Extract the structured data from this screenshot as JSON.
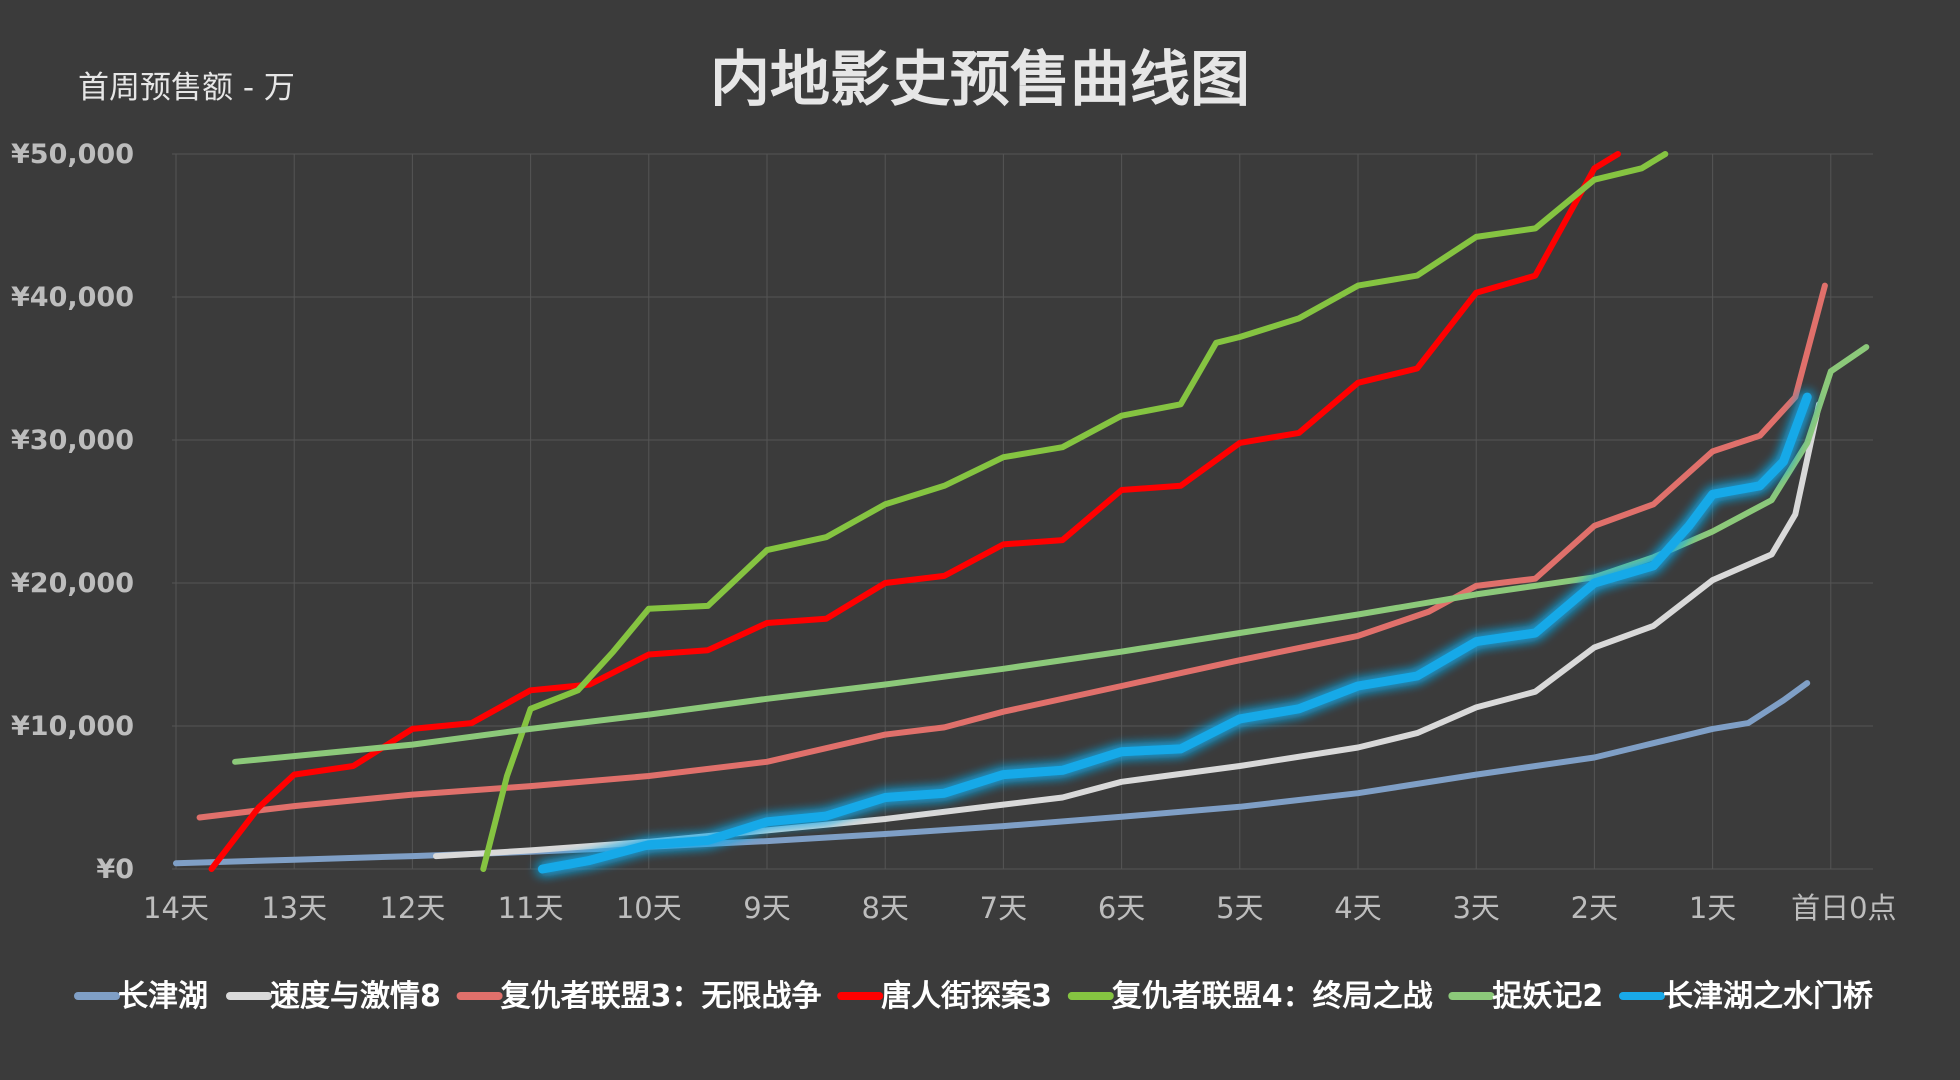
{
  "chart_data": {
    "type": "line",
    "title": "内地影史预售曲线图",
    "ylabel": "首周预售额 - 万",
    "ylim": [
      0,
      50000
    ],
    "yticks": [
      "¥0",
      "¥10,000",
      "¥20,000",
      "¥30,000",
      "¥40,000",
      "¥50,000"
    ],
    "ytick_values": [
      0,
      10000,
      20000,
      30000,
      40000,
      50000
    ],
    "x_categories": [
      "14天",
      "13天",
      "12天",
      "11天",
      "10天",
      "9天",
      "8天",
      "7天",
      "6天",
      "5天",
      "4天",
      "3天",
      "2天",
      "1天",
      "首日0点"
    ],
    "x_note": "x values are in days before release (14 → 0, 首日0点 = 0)",
    "grid": true,
    "legend_position": "bottom",
    "series": [
      {
        "name": "长津湖",
        "color": "#7f9fc6",
        "points": [
          [
            14,
            400
          ],
          [
            13,
            650
          ],
          [
            12,
            900
          ],
          [
            11,
            1200
          ],
          [
            10,
            1550
          ],
          [
            9,
            1950
          ],
          [
            8,
            2450
          ],
          [
            7,
            3000
          ],
          [
            6,
            3650
          ],
          [
            5,
            4350
          ],
          [
            4,
            5300
          ],
          [
            3,
            6600
          ],
          [
            2,
            7800
          ],
          [
            1.6,
            8600
          ],
          [
            1,
            9800
          ],
          [
            0.7,
            10200
          ],
          [
            0.4,
            11800
          ],
          [
            0.2,
            13000
          ]
        ]
      },
      {
        "name": "速度与激情8",
        "color": "#d9d9d9",
        "points": [
          [
            11.8,
            900
          ],
          [
            11,
            1300
          ],
          [
            10,
            1900
          ],
          [
            9,
            2700
          ],
          [
            8,
            3500
          ],
          [
            7,
            4500
          ],
          [
            6.5,
            5000
          ],
          [
            6,
            6100
          ],
          [
            5,
            7200
          ],
          [
            4,
            8500
          ],
          [
            3.5,
            9500
          ],
          [
            3,
            11300
          ],
          [
            2.5,
            12400
          ],
          [
            2,
            15500
          ],
          [
            1.5,
            17000
          ],
          [
            1,
            20200
          ],
          [
            0.5,
            22000
          ],
          [
            0.3,
            24800
          ],
          [
            0.1,
            32500
          ]
        ]
      },
      {
        "name": "复仇者联盟3：无限战争",
        "color": "#e0706b",
        "points": [
          [
            13.8,
            3600
          ],
          [
            13,
            4400
          ],
          [
            12,
            5200
          ],
          [
            11,
            5800
          ],
          [
            10,
            6500
          ],
          [
            9,
            7500
          ],
          [
            8,
            9400
          ],
          [
            7.5,
            9900
          ],
          [
            7,
            11000
          ],
          [
            6,
            12800
          ],
          [
            5,
            14600
          ],
          [
            4,
            16300
          ],
          [
            3.4,
            18000
          ],
          [
            3,
            19800
          ],
          [
            2.5,
            20300
          ],
          [
            2,
            24000
          ],
          [
            1.5,
            25500
          ],
          [
            1,
            29200
          ],
          [
            0.6,
            30300
          ],
          [
            0.3,
            33000
          ],
          [
            0.05,
            40800
          ]
        ]
      },
      {
        "name": "唐人街探案3",
        "color": "#ff0000",
        "points": [
          [
            13.7,
            0
          ],
          [
            13.3,
            4300
          ],
          [
            13,
            6600
          ],
          [
            12.5,
            7200
          ],
          [
            12,
            9800
          ],
          [
            11.5,
            10200
          ],
          [
            11,
            12500
          ],
          [
            10.5,
            12900
          ],
          [
            10,
            15000
          ],
          [
            9.5,
            15300
          ],
          [
            9,
            17200
          ],
          [
            8.5,
            17500
          ],
          [
            8,
            20000
          ],
          [
            7.5,
            20500
          ],
          [
            7,
            22700
          ],
          [
            6.5,
            23000
          ],
          [
            6,
            26500
          ],
          [
            5.5,
            26800
          ],
          [
            5,
            29800
          ],
          [
            4.5,
            30500
          ],
          [
            4,
            34000
          ],
          [
            3.5,
            35000
          ],
          [
            3,
            40300
          ],
          [
            2.5,
            41500
          ],
          [
            2,
            49000
          ],
          [
            1.8,
            50000
          ]
        ]
      },
      {
        "name": "复仇者联盟4：终局之战",
        "color": "#85c441",
        "points": [
          [
            11.4,
            0
          ],
          [
            11.2,
            6500
          ],
          [
            11,
            11200
          ],
          [
            10.6,
            12500
          ],
          [
            10.3,
            15200
          ],
          [
            10,
            18200
          ],
          [
            9.5,
            18400
          ],
          [
            9,
            22300
          ],
          [
            8.5,
            23200
          ],
          [
            8,
            25500
          ],
          [
            7.5,
            26800
          ],
          [
            7,
            28800
          ],
          [
            6.5,
            29500
          ],
          [
            6,
            31700
          ],
          [
            5.5,
            32500
          ],
          [
            5.2,
            36800
          ],
          [
            5,
            37200
          ],
          [
            4.5,
            38500
          ],
          [
            4,
            40800
          ],
          [
            3.5,
            41500
          ],
          [
            3,
            44200
          ],
          [
            2.5,
            44800
          ],
          [
            2,
            48200
          ],
          [
            1.6,
            49000
          ],
          [
            1.4,
            50000
          ]
        ]
      },
      {
        "name": "捉妖记2",
        "color": "#8cc97a",
        "points": [
          [
            13.5,
            7500
          ],
          [
            12,
            8700
          ],
          [
            11,
            9800
          ],
          [
            10,
            10800
          ],
          [
            9,
            11900
          ],
          [
            8,
            12900
          ],
          [
            7,
            14000
          ],
          [
            6,
            15200
          ],
          [
            5,
            16500
          ],
          [
            4,
            17800
          ],
          [
            3,
            19200
          ],
          [
            2,
            20400
          ],
          [
            1.5,
            21800
          ],
          [
            1,
            23600
          ],
          [
            0.5,
            25800
          ],
          [
            0.2,
            29800
          ],
          [
            0,
            34800
          ],
          [
            -0.3,
            36500
          ]
        ]
      },
      {
        "name": "长津湖之水门桥",
        "color": "#19a9e8",
        "glow": true,
        "points": [
          [
            10.9,
            0
          ],
          [
            10.5,
            600
          ],
          [
            10,
            1700
          ],
          [
            9.5,
            2000
          ],
          [
            9,
            3300
          ],
          [
            8.5,
            3700
          ],
          [
            8,
            5000
          ],
          [
            7.5,
            5300
          ],
          [
            7,
            6600
          ],
          [
            6.5,
            6900
          ],
          [
            6,
            8200
          ],
          [
            5.5,
            8400
          ],
          [
            5,
            10500
          ],
          [
            4.5,
            11200
          ],
          [
            4,
            12800
          ],
          [
            3.5,
            13500
          ],
          [
            3,
            15900
          ],
          [
            2.5,
            16500
          ],
          [
            2,
            20000
          ],
          [
            1.5,
            21200
          ],
          [
            1.2,
            24000
          ],
          [
            1,
            26200
          ],
          [
            0.6,
            26800
          ],
          [
            0.4,
            28500
          ],
          [
            0.2,
            33000
          ]
        ]
      }
    ]
  }
}
